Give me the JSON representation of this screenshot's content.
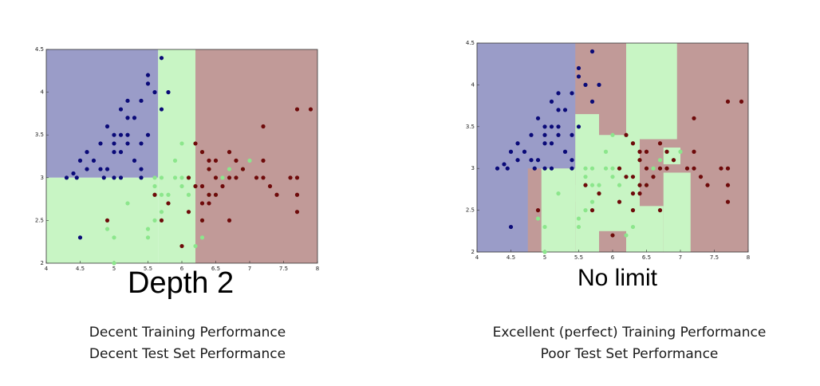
{
  "slide": {
    "left": {
      "subtitle": "Depth 2",
      "caption_line1": "Decent Training Performance",
      "caption_line2": "Decent Test Set Performance"
    },
    "right": {
      "subtitle": "No limit",
      "caption_line1": "Excellent (perfect) Training Performance",
      "caption_line2": "Poor Test Set Performance"
    }
  },
  "colors": {
    "region_blue": "#9a9cc8",
    "region_green": "#c8f5c4",
    "region_red": "#c19a98",
    "point_blue": "#0a0a78",
    "point_green": "#8ce68c",
    "point_red": "#6e0a0a"
  },
  "chart_data": [
    {
      "type": "scatter",
      "title": "Depth 2",
      "xlim": [
        4,
        8
      ],
      "ylim": [
        2,
        4.5
      ],
      "x_ticks": [
        "4",
        "4.5",
        "5",
        "5.5",
        "6",
        "6.5",
        "7",
        "7.5",
        "8"
      ],
      "y_ticks": [
        "2",
        "2.5",
        "3",
        "3.5",
        "4",
        "4.5"
      ],
      "decision_regions": [
        {
          "class": "blue",
          "x": [
            4,
            5.65
          ],
          "y": [
            3.0,
            4.5
          ]
        },
        {
          "class": "green",
          "x": [
            4,
            5.65
          ],
          "y": [
            2.0,
            3.0
          ]
        },
        {
          "class": "green",
          "x": [
            5.65,
            6.2
          ],
          "y": [
            2.0,
            4.5
          ]
        },
        {
          "class": "red",
          "x": [
            6.2,
            8
          ],
          "y": [
            2.0,
            4.5
          ]
        }
      ],
      "series": [
        {
          "class": "blue",
          "points": [
            [
              4.3,
              3.0
            ],
            [
              4.4,
              3.05
            ],
            [
              4.45,
              3.0
            ],
            [
              4.5,
              3.2
            ],
            [
              4.6,
              3.3
            ],
            [
              4.6,
              3.1
            ],
            [
              4.7,
              3.2
            ],
            [
              4.8,
              3.1
            ],
            [
              4.8,
              3.4
            ],
            [
              4.85,
              3.0
            ],
            [
              4.9,
              3.1
            ],
            [
              4.9,
              3.6
            ],
            [
              5.0,
              3.0
            ],
            [
              5.0,
              3.3
            ],
            [
              5.0,
              3.4
            ],
            [
              5.0,
              3.5
            ],
            [
              5.1,
              3.8
            ],
            [
              5.1,
              3.5
            ],
            [
              5.1,
              3.3
            ],
            [
              5.2,
              3.4
            ],
            [
              5.2,
              3.5
            ],
            [
              5.2,
              3.7
            ],
            [
              5.2,
              3.9
            ],
            [
              5.3,
              3.7
            ],
            [
              5.4,
              3.9
            ],
            [
              5.4,
              3.4
            ],
            [
              5.4,
              3.0
            ],
            [
              5.5,
              3.5
            ],
            [
              5.5,
              4.1
            ],
            [
              5.5,
              4.2
            ],
            [
              5.6,
              4.0
            ],
            [
              5.7,
              3.8
            ],
            [
              5.7,
              4.4
            ],
            [
              5.8,
              4.0
            ],
            [
              4.5,
              2.3
            ],
            [
              5.1,
              3.0
            ],
            [
              5.3,
              3.2
            ],
            [
              5.4,
              3.1
            ]
          ]
        },
        {
          "class": "green",
          "points": [
            [
              5.0,
              2.0
            ],
            [
              4.9,
              2.4
            ],
            [
              5.0,
              2.3
            ],
            [
              5.2,
              2.7
            ],
            [
              5.5,
              2.4
            ],
            [
              5.5,
              2.3
            ],
            [
              5.6,
              2.5
            ],
            [
              5.6,
              2.8
            ],
            [
              5.6,
              2.9
            ],
            [
              5.7,
              2.6
            ],
            [
              5.7,
              2.8
            ],
            [
              5.7,
              3.0
            ],
            [
              5.8,
              2.7
            ],
            [
              5.8,
              2.8
            ],
            [
              5.9,
              3.0
            ],
            [
              6.0,
              2.2
            ],
            [
              6.0,
              2.9
            ],
            [
              6.0,
              3.0
            ],
            [
              6.1,
              2.8
            ],
            [
              6.1,
              3.0
            ],
            [
              6.2,
              2.2
            ],
            [
              6.2,
              2.9
            ],
            [
              6.3,
              2.3
            ],
            [
              6.3,
              2.5
            ],
            [
              6.3,
              3.3
            ],
            [
              6.4,
              2.8
            ],
            [
              6.4,
              3.1
            ],
            [
              6.5,
              2.8
            ],
            [
              6.6,
              3.0
            ],
            [
              6.7,
              3.1
            ],
            [
              6.9,
              3.1
            ],
            [
              7.0,
              3.2
            ],
            [
              5.9,
              3.2
            ],
            [
              6.0,
              3.4
            ],
            [
              5.6,
              3.0
            ]
          ]
        },
        {
          "class": "red",
          "points": [
            [
              4.9,
              2.5
            ],
            [
              5.6,
              2.8
            ],
            [
              5.7,
              2.5
            ],
            [
              5.8,
              2.7
            ],
            [
              6.0,
              2.2
            ],
            [
              6.1,
              2.6
            ],
            [
              6.1,
              3.0
            ],
            [
              6.2,
              2.9
            ],
            [
              6.2,
              3.4
            ],
            [
              6.3,
              2.5
            ],
            [
              6.3,
              2.7
            ],
            [
              6.3,
              2.9
            ],
            [
              6.3,
              3.3
            ],
            [
              6.4,
              2.7
            ],
            [
              6.4,
              2.8
            ],
            [
              6.4,
              3.1
            ],
            [
              6.4,
              3.2
            ],
            [
              6.5,
              3.0
            ],
            [
              6.5,
              3.2
            ],
            [
              6.5,
              2.8
            ],
            [
              6.6,
              2.9
            ],
            [
              6.7,
              2.5
            ],
            [
              6.7,
              3.0
            ],
            [
              6.7,
              3.3
            ],
            [
              6.8,
              3.0
            ],
            [
              6.8,
              3.2
            ],
            [
              6.9,
              3.1
            ],
            [
              7.1,
              3.0
            ],
            [
              7.2,
              3.0
            ],
            [
              7.2,
              3.2
            ],
            [
              7.2,
              3.6
            ],
            [
              7.3,
              2.9
            ],
            [
              7.4,
              2.8
            ],
            [
              7.6,
              3.0
            ],
            [
              7.7,
              2.6
            ],
            [
              7.7,
              2.8
            ],
            [
              7.7,
              3.0
            ],
            [
              7.7,
              3.8
            ],
            [
              7.9,
              3.8
            ]
          ]
        }
      ]
    },
    {
      "type": "scatter",
      "title": "No limit",
      "xlim": [
        4,
        8
      ],
      "ylim": [
        2,
        4.5
      ],
      "x_ticks": [
        "4",
        "4.5",
        "5",
        "5.5",
        "6",
        "6.5",
        "7",
        "7.5",
        "8"
      ],
      "y_ticks": [
        "2",
        "2.5",
        "3",
        "3.5",
        "4",
        "4.5"
      ],
      "decision_regions": [
        {
          "class": "blue",
          "x": [
            4,
            8
          ],
          "y": [
            2.0,
            4.5
          ]
        },
        {
          "class": "red",
          "x": [
            4.75,
            8
          ],
          "y": [
            2.0,
            3.0
          ]
        },
        {
          "class": "red",
          "x": [
            5.45,
            8
          ],
          "y": [
            2.0,
            4.5
          ]
        },
        {
          "class": "green",
          "x": [
            4.95,
            5.45
          ],
          "y": [
            2.0,
            3.0
          ]
        },
        {
          "class": "green",
          "x": [
            5.45,
            5.8
          ],
          "y": [
            2.0,
            3.65
          ]
        },
        {
          "class": "green",
          "x": [
            5.8,
            6.2
          ],
          "y": [
            2.25,
            3.4
          ]
        },
        {
          "class": "green",
          "x": [
            6.2,
            6.75
          ],
          "y": [
            2.0,
            2.55
          ]
        },
        {
          "class": "green",
          "x": [
            6.75,
            7.15
          ],
          "y": [
            2.0,
            2.95
          ]
        },
        {
          "class": "green",
          "x": [
            6.4,
            6.95
          ],
          "y": [
            3.35,
            4.5
          ]
        },
        {
          "class": "green",
          "x": [
            6.2,
            6.4
          ],
          "y": [
            2.0,
            4.5
          ]
        },
        {
          "class": "green",
          "x": [
            6.75,
            7.0
          ],
          "y": [
            3.05,
            3.25
          ]
        },
        {
          "class": "green",
          "x": [
            5.0,
            5.45
          ],
          "y": [
            2.6,
            2.8
          ]
        }
      ],
      "series": [
        {
          "class": "blue",
          "points": [
            [
              4.3,
              3.0
            ],
            [
              4.4,
              3.05
            ],
            [
              4.45,
              3.0
            ],
            [
              4.5,
              3.2
            ],
            [
              4.6,
              3.3
            ],
            [
              4.6,
              3.1
            ],
            [
              4.7,
              3.2
            ],
            [
              4.8,
              3.1
            ],
            [
              4.8,
              3.4
            ],
            [
              4.85,
              3.0
            ],
            [
              4.9,
              3.1
            ],
            [
              4.9,
              3.6
            ],
            [
              5.0,
              3.0
            ],
            [
              5.0,
              3.3
            ],
            [
              5.0,
              3.4
            ],
            [
              5.0,
              3.5
            ],
            [
              5.1,
              3.8
            ],
            [
              5.1,
              3.5
            ],
            [
              5.1,
              3.3
            ],
            [
              5.2,
              3.4
            ],
            [
              5.2,
              3.5
            ],
            [
              5.2,
              3.7
            ],
            [
              5.2,
              3.9
            ],
            [
              5.3,
              3.7
            ],
            [
              5.4,
              3.9
            ],
            [
              5.4,
              3.4
            ],
            [
              5.4,
              3.0
            ],
            [
              5.5,
              3.5
            ],
            [
              5.5,
              4.1
            ],
            [
              5.5,
              4.2
            ],
            [
              5.6,
              4.0
            ],
            [
              5.7,
              3.8
            ],
            [
              5.7,
              4.4
            ],
            [
              5.8,
              4.0
            ],
            [
              4.5,
              2.3
            ],
            [
              5.1,
              3.0
            ],
            [
              5.3,
              3.2
            ],
            [
              5.4,
              3.1
            ]
          ]
        },
        {
          "class": "green",
          "points": [
            [
              5.0,
              2.0
            ],
            [
              4.9,
              2.4
            ],
            [
              5.0,
              2.3
            ],
            [
              5.2,
              2.7
            ],
            [
              5.5,
              2.4
            ],
            [
              5.5,
              2.3
            ],
            [
              5.6,
              2.5
            ],
            [
              5.6,
              2.8
            ],
            [
              5.6,
              2.9
            ],
            [
              5.7,
              2.6
            ],
            [
              5.7,
              2.8
            ],
            [
              5.7,
              3.0
            ],
            [
              5.8,
              2.7
            ],
            [
              5.8,
              2.8
            ],
            [
              5.9,
              3.0
            ],
            [
              6.0,
              2.2
            ],
            [
              6.0,
              2.9
            ],
            [
              6.0,
              3.0
            ],
            [
              6.1,
              2.8
            ],
            [
              6.1,
              3.0
            ],
            [
              6.2,
              2.2
            ],
            [
              6.2,
              2.9
            ],
            [
              6.3,
              2.3
            ],
            [
              6.3,
              2.5
            ],
            [
              6.3,
              3.3
            ],
            [
              6.4,
              2.8
            ],
            [
              6.4,
              3.1
            ],
            [
              6.5,
              2.8
            ],
            [
              6.6,
              3.0
            ],
            [
              6.7,
              3.1
            ],
            [
              6.9,
              3.1
            ],
            [
              7.0,
              3.2
            ],
            [
              5.9,
              3.2
            ],
            [
              6.0,
              3.4
            ],
            [
              5.6,
              3.0
            ]
          ]
        },
        {
          "class": "red",
          "points": [
            [
              4.9,
              2.5
            ],
            [
              5.6,
              2.8
            ],
            [
              5.7,
              2.5
            ],
            [
              5.8,
              2.7
            ],
            [
              6.0,
              2.2
            ],
            [
              6.1,
              2.6
            ],
            [
              6.1,
              3.0
            ],
            [
              6.2,
              2.9
            ],
            [
              6.2,
              3.4
            ],
            [
              6.3,
              2.5
            ],
            [
              6.3,
              2.7
            ],
            [
              6.3,
              2.9
            ],
            [
              6.3,
              3.3
            ],
            [
              6.4,
              2.7
            ],
            [
              6.4,
              2.8
            ],
            [
              6.4,
              3.1
            ],
            [
              6.4,
              3.2
            ],
            [
              6.5,
              3.0
            ],
            [
              6.5,
              3.2
            ],
            [
              6.5,
              2.8
            ],
            [
              6.6,
              2.9
            ],
            [
              6.7,
              2.5
            ],
            [
              6.7,
              3.0
            ],
            [
              6.7,
              3.3
            ],
            [
              6.8,
              3.0
            ],
            [
              6.8,
              3.2
            ],
            [
              6.9,
              3.1
            ],
            [
              7.1,
              3.0
            ],
            [
              7.2,
              3.0
            ],
            [
              7.2,
              3.2
            ],
            [
              7.2,
              3.6
            ],
            [
              7.3,
              2.9
            ],
            [
              7.4,
              2.8
            ],
            [
              7.6,
              3.0
            ],
            [
              7.7,
              2.6
            ],
            [
              7.7,
              2.8
            ],
            [
              7.7,
              3.0
            ],
            [
              7.7,
              3.8
            ],
            [
              7.9,
              3.8
            ]
          ]
        }
      ]
    }
  ]
}
